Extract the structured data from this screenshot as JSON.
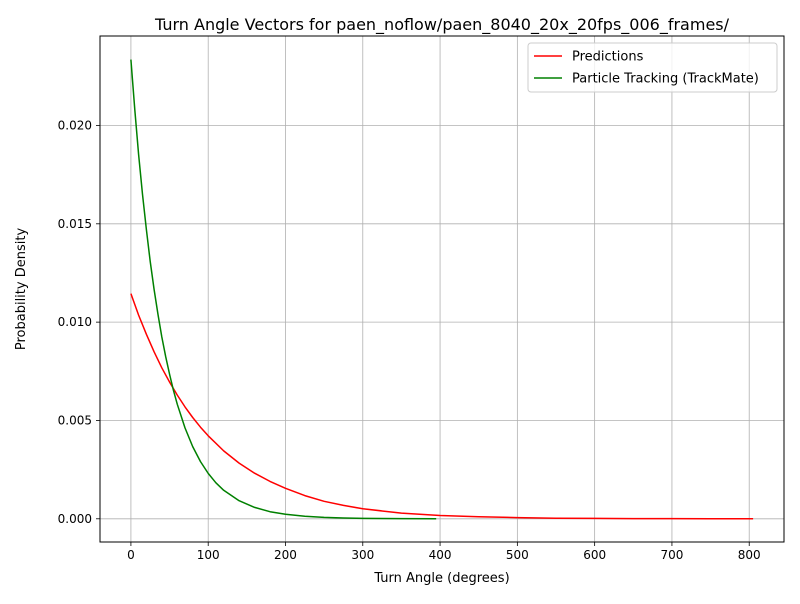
{
  "chart_data": {
    "type": "line",
    "title": "Turn Angle Vectors for paen_noflow/paen_8040_20x_20fps_006_frames/",
    "xlabel": "Turn Angle (degrees)",
    "ylabel": "Probability Density",
    "xlim": [
      -40,
      845
    ],
    "ylim": [
      -0.00118,
      0.02455
    ],
    "xticks": [
      0,
      100,
      200,
      300,
      400,
      500,
      600,
      700,
      800
    ],
    "xtick_labels": [
      "0",
      "100",
      "200",
      "300",
      "400",
      "500",
      "600",
      "700",
      "800"
    ],
    "yticks": [
      0.0,
      0.005,
      0.01,
      0.015,
      0.02
    ],
    "ytick_labels": [
      "0.000",
      "0.005",
      "0.010",
      "0.015",
      "0.020"
    ],
    "grid": true,
    "legend_position": "top-right",
    "series": [
      {
        "name": "Predictions",
        "color": "#ff0000",
        "x": [
          0,
          10,
          20,
          30,
          40,
          50,
          60,
          70,
          80,
          90,
          100,
          120,
          140,
          160,
          180,
          200,
          225,
          250,
          275,
          300,
          350,
          400,
          450,
          500,
          550,
          600,
          650,
          700,
          750,
          805
        ],
        "y": [
          0.01145,
          0.01036,
          0.00938,
          0.00849,
          0.00768,
          0.00695,
          0.00629,
          0.00569,
          0.00515,
          0.00466,
          0.00422,
          0.00345,
          0.00283,
          0.00232,
          0.0019,
          0.00155,
          0.00118,
          0.00089,
          0.00068,
          0.00051,
          0.00029,
          0.00017,
          0.0001,
          6e-05,
          3e-05,
          2e-05,
          1e-05,
          1e-05,
          0.0,
          0.0
        ]
      },
      {
        "name": "Particle Tracking (TrackMate)",
        "color": "#008000",
        "x": [
          0,
          5,
          10,
          15,
          20,
          25,
          30,
          35,
          40,
          45,
          50,
          55,
          60,
          70,
          80,
          90,
          100,
          110,
          120,
          140,
          160,
          180,
          200,
          225,
          250,
          275,
          300,
          350,
          395
        ],
        "y": [
          0.02335,
          0.0208,
          0.01853,
          0.0165,
          0.0147,
          0.01309,
          0.01166,
          0.01039,
          0.00925,
          0.00824,
          0.00734,
          0.00654,
          0.00582,
          0.00462,
          0.00367,
          0.00291,
          0.00231,
          0.00183,
          0.00145,
          0.00092,
          0.00058,
          0.00036,
          0.00023,
          0.00013,
          7e-05,
          4e-05,
          2e-05,
          1e-05,
          0.0
        ]
      }
    ]
  }
}
